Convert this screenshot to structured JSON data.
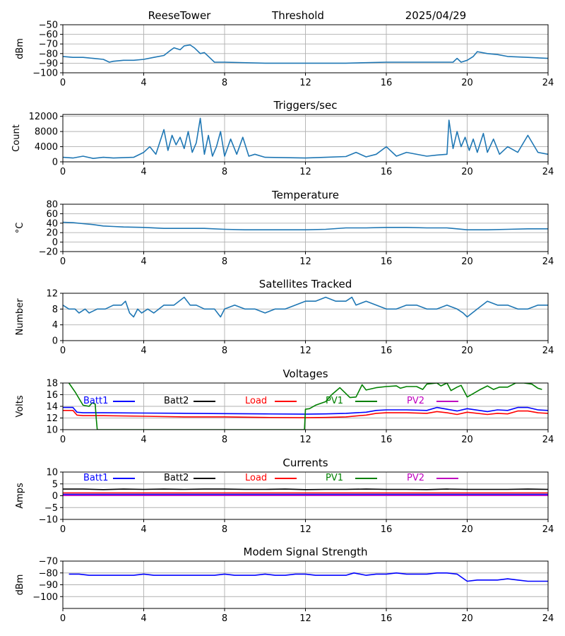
{
  "header": {
    "station": "ReeseTower",
    "mode": "Threshold",
    "date": "2025/04/29"
  },
  "chart_data": [
    {
      "id": "threshold",
      "type": "line",
      "title": "",
      "ylabel": "dBm",
      "xlim": [
        0,
        24
      ],
      "ylim": [
        -100,
        -50
      ],
      "xticks": [
        0,
        4,
        8,
        12,
        16,
        20,
        24
      ],
      "yticks": [
        -100,
        -90,
        -80,
        -70,
        -60,
        -50
      ],
      "grid": true,
      "series": [
        {
          "color": "#1f77b4",
          "x": [
            0,
            0.5,
            1,
            1.5,
            2,
            2.3,
            2.5,
            3,
            3.5,
            4,
            4.5,
            5,
            5.3,
            5.5,
            5.8,
            6,
            6.3,
            6.5,
            6.8,
            7,
            7.3,
            7.5,
            8,
            10,
            12,
            14,
            16,
            18,
            19.3,
            19.5,
            19.7,
            20,
            20.3,
            20.5,
            21,
            21.5,
            22,
            23,
            24
          ],
          "y": [
            -83,
            -84,
            -84,
            -85,
            -86,
            -89,
            -88,
            -87,
            -87,
            -86,
            -84,
            -82,
            -77,
            -74,
            -76,
            -72,
            -71,
            -74,
            -80,
            -79,
            -85,
            -89,
            -89,
            -90,
            -90,
            -90,
            -89,
            -89,
            -89,
            -85,
            -89,
            -87,
            -83,
            -78,
            -80,
            -81,
            -83,
            -84,
            -85
          ]
        }
      ]
    },
    {
      "id": "triggers",
      "type": "line",
      "title": "Triggers/sec",
      "ylabel": "Count",
      "xlim": [
        0,
        24
      ],
      "ylim": [
        0,
        12500
      ],
      "xticks": [
        0,
        4,
        8,
        12,
        16,
        20,
        24
      ],
      "yticks": [
        0,
        4000,
        8000,
        12000
      ],
      "grid": true,
      "series": [
        {
          "color": "#1f77b4",
          "x": [
            0,
            0.5,
            1,
            1.5,
            2,
            2.5,
            3,
            3.5,
            4,
            4.3,
            4.6,
            5,
            5.2,
            5.4,
            5.6,
            5.8,
            6,
            6.2,
            6.4,
            6.6,
            6.8,
            7,
            7.2,
            7.4,
            7.6,
            7.8,
            8,
            8.3,
            8.6,
            8.9,
            9.2,
            9.5,
            10,
            11,
            12,
            13,
            14,
            14.5,
            15,
            15.5,
            16,
            16.5,
            17,
            18,
            18.5,
            19,
            19.1,
            19.3,
            19.5,
            19.7,
            19.9,
            20.1,
            20.3,
            20.5,
            20.8,
            21,
            21.3,
            21.6,
            22,
            22.5,
            23,
            23.5,
            24
          ],
          "y": [
            1200,
            1000,
            1500,
            900,
            1200,
            1000,
            1100,
            1200,
            2500,
            4000,
            2000,
            8500,
            3000,
            7000,
            4500,
            6500,
            3500,
            8000,
            2500,
            5000,
            11500,
            2000,
            7000,
            1500,
            4000,
            8000,
            1500,
            6000,
            2000,
            6500,
            1500,
            2000,
            1200,
            1100,
            1000,
            1200,
            1400,
            2500,
            1300,
            2000,
            4000,
            1500,
            2500,
            1500,
            1800,
            2000,
            11000,
            3500,
            8000,
            4000,
            6500,
            3000,
            6000,
            2500,
            7500,
            2500,
            6000,
            2000,
            4000,
            2500,
            7000,
            2500,
            2000
          ]
        }
      ]
    },
    {
      "id": "temperature",
      "type": "line",
      "title": "Temperature",
      "ylabel": "°C",
      "xlim": [
        0,
        24
      ],
      "ylim": [
        -20,
        80
      ],
      "xticks": [
        0,
        4,
        8,
        12,
        16,
        20,
        24
      ],
      "yticks": [
        -20,
        0,
        20,
        40,
        60,
        80
      ],
      "grid": true,
      "series": [
        {
          "color": "#1f77b4",
          "x": [
            0,
            0.5,
            1,
            1.5,
            2,
            2.5,
            3,
            4,
            5,
            6,
            7,
            8,
            9,
            10,
            11,
            12,
            13,
            14,
            15,
            16,
            17,
            18,
            19,
            19.5,
            20,
            21,
            22,
            23,
            24
          ],
          "y": [
            42,
            41,
            39,
            37,
            34,
            33,
            32,
            31,
            29,
            29,
            29,
            27,
            26,
            26,
            26,
            26,
            27,
            30,
            30,
            31,
            31,
            30,
            30,
            28,
            26,
            26,
            27,
            28,
            28
          ]
        }
      ]
    },
    {
      "id": "satellites",
      "type": "line",
      "title": "Satellites Tracked",
      "ylabel": "Number",
      "xlim": [
        0,
        24
      ],
      "ylim": [
        0,
        12
      ],
      "xticks": [
        0,
        4,
        8,
        12,
        16,
        20,
        24
      ],
      "yticks": [
        0,
        4,
        8,
        12
      ],
      "grid": true,
      "series": [
        {
          "color": "#1f77b4",
          "x": [
            0,
            0.3,
            0.6,
            0.8,
            1.1,
            1.3,
            1.7,
            2.1,
            2.5,
            2.9,
            3.1,
            3.3,
            3.5,
            3.7,
            3.9,
            4.2,
            4.5,
            5,
            5.5,
            6,
            6.3,
            6.6,
            7,
            7.5,
            7.8,
            8,
            8.5,
            9,
            9.5,
            10,
            10.5,
            11,
            11.5,
            12,
            12.5,
            13,
            13.5,
            14,
            14.3,
            14.5,
            15,
            15.5,
            16,
            16.5,
            17,
            17.5,
            18,
            18.5,
            19,
            19.5,
            19.8,
            20,
            20.5,
            21,
            21.5,
            22,
            22.5,
            23,
            23.5,
            24
          ],
          "y": [
            9,
            8,
            8,
            7,
            8,
            7,
            8,
            8,
            9,
            9,
            10,
            7,
            6,
            8,
            7,
            8,
            7,
            9,
            9,
            11,
            9,
            9,
            8,
            8,
            6,
            8,
            9,
            8,
            8,
            7,
            8,
            8,
            9,
            10,
            10,
            11,
            10,
            10,
            11,
            9,
            10,
            9,
            8,
            8,
            9,
            9,
            8,
            8,
            9,
            8,
            7,
            6,
            8,
            10,
            9,
            9,
            8,
            8,
            9,
            9
          ]
        }
      ]
    },
    {
      "id": "voltages",
      "type": "line",
      "title": "Voltages",
      "ylabel": "Volts",
      "xlim": [
        0,
        24
      ],
      "ylim": [
        10,
        18
      ],
      "xticks": [
        0,
        4,
        8,
        12,
        16,
        20,
        24
      ],
      "yticks": [
        10,
        12,
        14,
        16,
        18
      ],
      "grid": true,
      "legend": [
        "Batt1",
        "Batt2",
        "Load",
        "PV1",
        "PV2"
      ],
      "legend_colors": [
        "#0000ff",
        "#000000",
        "#ff0000",
        "#008000",
        "#bf00bf"
      ],
      "series": [
        {
          "name": "Batt1",
          "color": "#0000ff",
          "x": [
            0,
            0.5,
            0.7,
            1,
            2,
            4,
            6,
            8,
            10,
            12,
            13,
            14,
            15,
            15.5,
            16,
            17,
            18,
            18.5,
            19,
            19.5,
            20,
            21,
            21.5,
            22,
            22.5,
            23,
            23.5,
            24
          ],
          "y": [
            13.8,
            13.8,
            13.0,
            12.9,
            12.9,
            12.85,
            12.8,
            12.75,
            12.7,
            12.65,
            12.7,
            12.8,
            13.0,
            13.3,
            13.4,
            13.4,
            13.3,
            13.8,
            13.5,
            13.2,
            13.6,
            13.1,
            13.4,
            13.3,
            13.8,
            13.8,
            13.4,
            13.3
          ]
        },
        {
          "name": "Load",
          "color": "#ff0000",
          "x": [
            0,
            0.5,
            0.7,
            1,
            2,
            4,
            6,
            8,
            10,
            12,
            13,
            14,
            15,
            15.5,
            16,
            17,
            18,
            18.5,
            19,
            19.5,
            20,
            21,
            21.5,
            22,
            22.5,
            23,
            23.5,
            24
          ],
          "y": [
            13.3,
            13.3,
            12.5,
            12.4,
            12.4,
            12.3,
            12.2,
            12.2,
            12.1,
            12.05,
            12.1,
            12.2,
            12.5,
            12.8,
            12.9,
            12.9,
            12.8,
            13.1,
            12.9,
            12.6,
            13.0,
            12.6,
            12.8,
            12.7,
            13.2,
            13.2,
            12.9,
            12.8
          ]
        },
        {
          "name": "PV1",
          "color": "#008000",
          "x": [
            0.3,
            0.6,
            1,
            1.3,
            1.45,
            1.6,
            1.65,
            1.7,
            11.95,
            12,
            12.2,
            12.5,
            13,
            13.3,
            13.7,
            14.2,
            14.5,
            14.8,
            15,
            15.5,
            16,
            16.5,
            16.7,
            17,
            17.5,
            17.8,
            18,
            18.5,
            18.7,
            19,
            19.2,
            19.5,
            19.7,
            20,
            20.3,
            20.6,
            21,
            21.3,
            21.6,
            22,
            22.4,
            22.8,
            23.2,
            23.5,
            23.7
          ],
          "y": [
            18.0,
            16.5,
            14.2,
            14.0,
            14.6,
            14.4,
            12.0,
            10.0,
            10.0,
            13.5,
            13.6,
            14.2,
            14.8,
            16.0,
            17.2,
            15.5,
            15.6,
            17.7,
            16.8,
            17.2,
            17.4,
            17.5,
            17.1,
            17.4,
            17.4,
            16.9,
            17.8,
            18.0,
            17.5,
            18.0,
            16.7,
            17.3,
            17.6,
            15.6,
            16.2,
            16.8,
            17.5,
            16.9,
            17.3,
            17.3,
            18.0,
            18.0,
            17.8,
            17.1,
            16.9
          ]
        }
      ]
    },
    {
      "id": "currents",
      "type": "line",
      "title": "Currents",
      "ylabel": "Amps",
      "xlim": [
        0,
        24
      ],
      "ylim": [
        -10,
        10
      ],
      "xticks": [
        0,
        4,
        8,
        12,
        16,
        20,
        24
      ],
      "yticks": [
        -10,
        -5,
        0,
        5,
        10
      ],
      "grid": true,
      "legend": [
        "Batt1",
        "Batt2",
        "Load",
        "PV1",
        "PV2"
      ],
      "legend_colors": [
        "#0000ff",
        "#000000",
        "#ff0000",
        "#008000",
        "#bf00bf"
      ],
      "series": [
        {
          "name": "Batt2",
          "color": "#000000",
          "x": [
            0,
            1,
            2,
            3,
            4,
            5,
            6,
            7,
            8,
            9,
            10,
            11,
            12,
            13,
            14,
            15,
            16,
            17,
            18,
            19,
            20,
            21,
            22,
            23,
            24
          ],
          "y": [
            2.8,
            2.8,
            2.6,
            2.8,
            2.7,
            2.8,
            2.7,
            2.8,
            2.8,
            2.7,
            2.7,
            2.8,
            2.6,
            2.7,
            2.7,
            2.8,
            2.7,
            2.7,
            2.6,
            2.8,
            2.7,
            2.7,
            2.7,
            2.8,
            2.7
          ]
        },
        {
          "name": "Load",
          "color": "#ff0000",
          "x": [
            0,
            24
          ],
          "y": [
            1.2,
            1.2
          ]
        },
        {
          "name": "Batt1",
          "color": "#0000ff",
          "x": [
            0,
            24
          ],
          "y": [
            0.6,
            0.6
          ]
        },
        {
          "name": "PV2",
          "color": "#bf00bf",
          "x": [
            0,
            24
          ],
          "y": [
            0.1,
            0.1
          ]
        }
      ]
    },
    {
      "id": "modem",
      "type": "line",
      "title": "Modem Signal Strength",
      "ylabel": "dBm",
      "xlim": [
        0,
        24
      ],
      "ylim": [
        -110,
        -70
      ],
      "xticks": [
        0,
        4,
        8,
        12,
        16,
        20,
        24
      ],
      "yticks": [
        -100,
        -90,
        -80,
        -70
      ],
      "grid": true,
      "series": [
        {
          "color": "#0000ff",
          "x": [
            0.3,
            0.8,
            1.3,
            2,
            3,
            3.5,
            4,
            4.5,
            5,
            6,
            7,
            7.5,
            8,
            8.5,
            9,
            9.5,
            10,
            10.5,
            11,
            11.5,
            12,
            12.5,
            13,
            14,
            14.4,
            15,
            15.5,
            16,
            16.5,
            17,
            18,
            18.5,
            19,
            19.5,
            20,
            20.5,
            21,
            21.5,
            22,
            22.5,
            23,
            23.5,
            24
          ],
          "y": [
            -81,
            -81,
            -82,
            -82,
            -82,
            -82,
            -81,
            -82,
            -82,
            -82,
            -82,
            -82,
            -81,
            -82,
            -82,
            -82,
            -81,
            -82,
            -82,
            -81,
            -81,
            -82,
            -82,
            -82,
            -80,
            -82,
            -81,
            -81,
            -80,
            -81,
            -81,
            -80,
            -80,
            -81,
            -87,
            -86,
            -86,
            -86,
            -85,
            -86,
            -87,
            -87,
            -87
          ]
        }
      ]
    }
  ]
}
